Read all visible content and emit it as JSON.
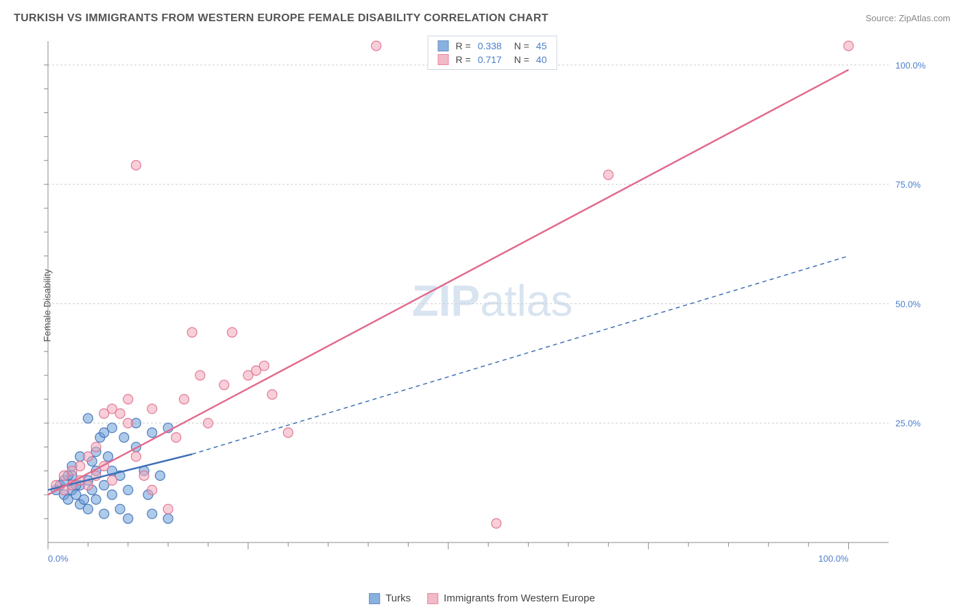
{
  "header": {
    "title": "TURKISH VS IMMIGRANTS FROM WESTERN EUROPE FEMALE DISABILITY CORRELATION CHART",
    "source": "Source: ZipAtlas.com"
  },
  "ylabel": "Female Disability",
  "watermark": {
    "bold": "ZIP",
    "rest": "atlas"
  },
  "chart": {
    "type": "scatter",
    "xlim": [
      0,
      105
    ],
    "ylim": [
      0,
      105
    ],
    "xticks": [
      0,
      25,
      50,
      75,
      100
    ],
    "yticks": [
      0,
      25,
      50,
      75,
      100
    ],
    "xtick_labels": [
      "0.0%",
      "",
      "",
      "",
      "100.0%"
    ],
    "ytick_labels": [
      "",
      "25.0%",
      "50.0%",
      "75.0%",
      "100.0%"
    ],
    "grid_color": "#cccccc",
    "axis_color": "#888888",
    "background_color": "#ffffff",
    "tick_label_color": "#4a7ecb",
    "tick_label_fontsize": 13,
    "marker_radius": 7,
    "marker_opacity": 0.55,
    "marker_stroke_opacity": 0.9
  },
  "series": [
    {
      "name": "Turks",
      "fill_color": "#6c9ed8",
      "stroke_color": "#3d6fb5",
      "line_x": [
        0,
        18
      ],
      "line_y": [
        11,
        18.5
      ],
      "line_style": "solid",
      "ext_x": [
        18,
        100
      ],
      "ext_y": [
        18.5,
        60
      ],
      "ext_style": "dashed",
      "points": [
        [
          1,
          11
        ],
        [
          1.5,
          12
        ],
        [
          2,
          10
        ],
        [
          2,
          13
        ],
        [
          2.5,
          9
        ],
        [
          3,
          11
        ],
        [
          3,
          14
        ],
        [
          3.5,
          10
        ],
        [
          4,
          12
        ],
        [
          4,
          8
        ],
        [
          5,
          13
        ],
        [
          5,
          26
        ],
        [
          5.5,
          11
        ],
        [
          6,
          9
        ],
        [
          6,
          15
        ],
        [
          6.5,
          22
        ],
        [
          7,
          6
        ],
        [
          7,
          12
        ],
        [
          7.5,
          18
        ],
        [
          8,
          10
        ],
        [
          8,
          24
        ],
        [
          9,
          7
        ],
        [
          9,
          14
        ],
        [
          9.5,
          22
        ],
        [
          10,
          5
        ],
        [
          10,
          11
        ],
        [
          11,
          20
        ],
        [
          11,
          25
        ],
        [
          12,
          15
        ],
        [
          12.5,
          10
        ],
        [
          13,
          6
        ],
        [
          13,
          23
        ],
        [
          14,
          14
        ],
        [
          15,
          5
        ],
        [
          15,
          24
        ],
        [
          3,
          16
        ],
        [
          4,
          18
        ],
        [
          5,
          7
        ],
        [
          6,
          19
        ],
        [
          7,
          23
        ],
        [
          8,
          15
        ],
        [
          2.5,
          14
        ],
        [
          3.5,
          12
        ],
        [
          4.5,
          9
        ],
        [
          5.5,
          17
        ]
      ]
    },
    {
      "name": "Immigrants from Western Europe",
      "fill_color": "#f0a8ba",
      "stroke_color": "#e26a8c",
      "line_x": [
        0,
        100
      ],
      "line_y": [
        10,
        99
      ],
      "line_style": "solid",
      "points": [
        [
          1,
          12
        ],
        [
          2,
          11
        ],
        [
          2,
          14
        ],
        [
          3,
          12
        ],
        [
          3,
          15
        ],
        [
          4,
          13
        ],
        [
          5,
          12
        ],
        [
          5,
          18
        ],
        [
          6,
          14
        ],
        [
          7,
          16
        ],
        [
          7,
          27
        ],
        [
          8,
          13
        ],
        [
          8,
          28
        ],
        [
          9,
          27
        ],
        [
          10,
          25
        ],
        [
          10,
          30
        ],
        [
          11,
          18
        ],
        [
          12,
          14
        ],
        [
          13,
          11
        ],
        [
          13,
          28
        ],
        [
          15,
          7
        ],
        [
          16,
          22
        ],
        [
          17,
          30
        ],
        [
          18,
          44
        ],
        [
          19,
          35
        ],
        [
          20,
          25
        ],
        [
          22,
          33
        ],
        [
          23,
          44
        ],
        [
          25,
          35
        ],
        [
          26,
          36
        ],
        [
          27,
          37
        ],
        [
          28,
          31
        ],
        [
          30,
          23
        ],
        [
          11,
          79
        ],
        [
          41,
          104
        ],
        [
          56,
          4
        ],
        [
          70,
          77
        ],
        [
          100,
          104
        ],
        [
          4,
          16
        ],
        [
          6,
          20
        ]
      ]
    }
  ],
  "legend_top": {
    "rows": [
      {
        "sw_idx": 0,
        "r_label": "R =",
        "r_value": "0.338",
        "n_label": "N =",
        "n_value": "45"
      },
      {
        "sw_idx": 1,
        "r_label": "R =",
        "r_value": "0.717",
        "n_label": "N =",
        "n_value": "40"
      }
    ]
  },
  "legend_bottom": {
    "items": [
      {
        "sw_idx": 0,
        "label": "Turks"
      },
      {
        "sw_idx": 1,
        "label": "Immigrants from Western Europe"
      }
    ]
  }
}
